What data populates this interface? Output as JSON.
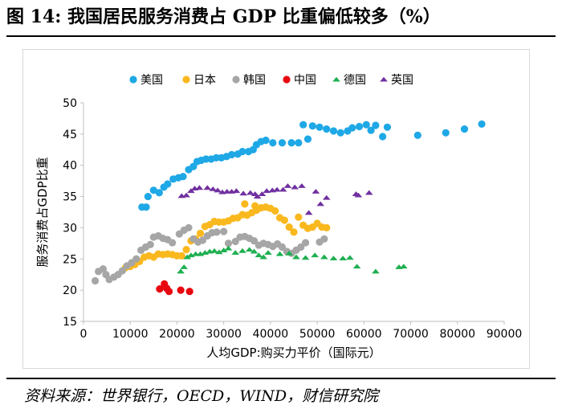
{
  "figure": {
    "title": "图 14: 我国居民服务消费占 GDP 比重偏低较多（%）",
    "source": "资料来源：世界银行，OECD，WIND，财信研究院"
  },
  "chart_data": {
    "type": "scatter",
    "title": "图 14: 我国居民服务消费占 GDP 比重偏低较多（%）",
    "xlabel": "人均GDP:购买力平价（国际元）",
    "ylabel": "服务消费占GDP比重",
    "xlim": [
      0,
      90000
    ],
    "ylim": [
      15,
      50
    ],
    "xticks": [
      0,
      10000,
      20000,
      30000,
      40000,
      50000,
      60000,
      70000,
      80000,
      90000
    ],
    "yticks": [
      15,
      20,
      25,
      30,
      35,
      40,
      45,
      50
    ],
    "legend_position": "top",
    "grid": false,
    "series": [
      {
        "name": "美国",
        "color": "#1fa8e6",
        "marker": "circle",
        "points": [
          [
            12500,
            33.3
          ],
          [
            13400,
            33.3
          ],
          [
            13800,
            35.0
          ],
          [
            15000,
            36.0
          ],
          [
            16200,
            35.6
          ],
          [
            17200,
            36.5
          ],
          [
            18000,
            37.0
          ],
          [
            19200,
            37.8
          ],
          [
            20300,
            38.0
          ],
          [
            21300,
            38.2
          ],
          [
            22500,
            39.3
          ],
          [
            23500,
            39.8
          ],
          [
            24300,
            40.6
          ],
          [
            25200,
            40.8
          ],
          [
            26200,
            41.0
          ],
          [
            27300,
            41.0
          ],
          [
            28400,
            41.2
          ],
          [
            29500,
            41.2
          ],
          [
            30600,
            41.4
          ],
          [
            31700,
            41.7
          ],
          [
            33000,
            41.8
          ],
          [
            34000,
            42.2
          ],
          [
            35300,
            42.2
          ],
          [
            36300,
            42.5
          ],
          [
            37000,
            43.3
          ],
          [
            38000,
            43.8
          ],
          [
            39000,
            44.0
          ],
          [
            40500,
            43.6
          ],
          [
            42500,
            43.6
          ],
          [
            44500,
            43.6
          ],
          [
            46000,
            43.6
          ],
          [
            47000,
            46.5
          ],
          [
            48000,
            44.2
          ],
          [
            49000,
            46.3
          ],
          [
            50500,
            46.1
          ],
          [
            52000,
            45.8
          ],
          [
            53500,
            45.5
          ],
          [
            55000,
            45.2
          ],
          [
            56500,
            45.5
          ],
          [
            57500,
            46.0
          ],
          [
            59000,
            46.2
          ],
          [
            60500,
            46.5
          ],
          [
            61500,
            45.6
          ],
          [
            62500,
            46.4
          ],
          [
            64000,
            44.6
          ],
          [
            65000,
            46.1
          ],
          [
            71500,
            44.8
          ],
          [
            77500,
            45.2
          ],
          [
            81500,
            45.8
          ],
          [
            85200,
            46.6
          ]
        ]
      },
      {
        "name": "日本",
        "color": "#f9b81e",
        "marker": "circle",
        "points": [
          [
            9000,
            23.6
          ],
          [
            10000,
            23.8
          ],
          [
            11000,
            24.1
          ],
          [
            12000,
            24.6
          ],
          [
            13000,
            25.3
          ],
          [
            14000,
            25.5
          ],
          [
            15000,
            25.3
          ],
          [
            16000,
            25.8
          ],
          [
            17000,
            25.7
          ],
          [
            18000,
            25.8
          ],
          [
            19000,
            25.7
          ],
          [
            20000,
            25.5
          ],
          [
            21000,
            25.5
          ],
          [
            22000,
            26.5
          ],
          [
            23000,
            27.9
          ],
          [
            24000,
            28.2
          ],
          [
            25000,
            29.1
          ],
          [
            26000,
            30.2
          ],
          [
            27000,
            30.5
          ],
          [
            28000,
            31.0
          ],
          [
            29000,
            30.9
          ],
          [
            30000,
            30.9
          ],
          [
            31000,
            31.1
          ],
          [
            32000,
            31.5
          ],
          [
            33000,
            31.6
          ],
          [
            34000,
            32.1
          ],
          [
            35000,
            32.0
          ],
          [
            36000,
            32.4
          ],
          [
            37000,
            32.8
          ],
          [
            38000,
            33.2
          ],
          [
            39000,
            33.3
          ],
          [
            40000,
            33.1
          ],
          [
            41000,
            32.7
          ],
          [
            42000,
            31.6
          ],
          [
            43000,
            31.2
          ],
          [
            44000,
            30.1
          ],
          [
            45000,
            29.3
          ],
          [
            46000,
            31.7
          ],
          [
            47000,
            30.4
          ],
          [
            48000,
            29.9
          ],
          [
            49000,
            30.1
          ],
          [
            50000,
            30.7
          ],
          [
            51000,
            30.1
          ],
          [
            52000,
            30.0
          ],
          [
            34500,
            33.8
          ],
          [
            36700,
            33.5
          ]
        ]
      },
      {
        "name": "韩国",
        "color": "#a6a6a6",
        "marker": "circle",
        "points": [
          [
            2500,
            21.5
          ],
          [
            3200,
            23.0
          ],
          [
            4200,
            23.4
          ],
          [
            4800,
            22.5
          ],
          [
            5500,
            21.7
          ],
          [
            6500,
            22.1
          ],
          [
            7400,
            22.5
          ],
          [
            8300,
            23.1
          ],
          [
            9300,
            23.9
          ],
          [
            10300,
            24.4
          ],
          [
            11300,
            25.0
          ],
          [
            12300,
            26.4
          ],
          [
            13300,
            26.9
          ],
          [
            14300,
            27.3
          ],
          [
            15000,
            28.5
          ],
          [
            16000,
            28.7
          ],
          [
            17000,
            28.3
          ],
          [
            18000,
            28.1
          ],
          [
            19000,
            27.6
          ],
          [
            20500,
            29.0
          ],
          [
            21500,
            29.6
          ],
          [
            22500,
            30.0
          ],
          [
            23500,
            28.2
          ],
          [
            24500,
            27.7
          ],
          [
            25500,
            28.0
          ],
          [
            26500,
            28.7
          ],
          [
            27500,
            29.2
          ],
          [
            28500,
            29.3
          ],
          [
            30000,
            29.4
          ],
          [
            31000,
            27.5
          ],
          [
            32500,
            27.8
          ],
          [
            33500,
            28.5
          ],
          [
            34500,
            28.6
          ],
          [
            35500,
            28.3
          ],
          [
            36500,
            27.9
          ],
          [
            37500,
            27.2
          ],
          [
            38500,
            27.5
          ],
          [
            39500,
            27.3
          ],
          [
            40500,
            27.0
          ],
          [
            41500,
            27.4
          ],
          [
            42500,
            26.9
          ],
          [
            43500,
            26.2
          ],
          [
            44500,
            25.9
          ],
          [
            45500,
            26.4
          ],
          [
            46500,
            26.9
          ],
          [
            47500,
            27.6
          ],
          [
            50500,
            27.7
          ],
          [
            51500,
            28.2
          ]
        ]
      },
      {
        "name": "中国",
        "color": "#e8060f",
        "marker": "circle",
        "points": [
          [
            16300,
            20.2
          ],
          [
            17300,
            21.0
          ],
          [
            17800,
            20.3
          ],
          [
            18300,
            19.8
          ],
          [
            20800,
            20.0
          ],
          [
            22700,
            19.8
          ]
        ]
      },
      {
        "name": "德国",
        "color": "#1eaf50",
        "marker": "triangle",
        "points": [
          [
            20800,
            23.0
          ],
          [
            21500,
            23.7
          ],
          [
            22200,
            25.3
          ],
          [
            23000,
            25.6
          ],
          [
            24000,
            25.8
          ],
          [
            25000,
            25.8
          ],
          [
            26000,
            26.0
          ],
          [
            27000,
            26.2
          ],
          [
            28000,
            26.3
          ],
          [
            29000,
            26.1
          ],
          [
            30000,
            26.4
          ],
          [
            31000,
            26.7
          ],
          [
            32500,
            26.0
          ],
          [
            34000,
            26.3
          ],
          [
            35500,
            26.5
          ],
          [
            36500,
            26.2
          ],
          [
            37500,
            25.6
          ],
          [
            38500,
            25.3
          ],
          [
            39500,
            26.0
          ],
          [
            42000,
            25.8
          ],
          [
            44000,
            25.9
          ],
          [
            45500,
            25.3
          ],
          [
            47500,
            25.2
          ],
          [
            49500,
            25.6
          ],
          [
            51500,
            25.3
          ],
          [
            53500,
            25.1
          ],
          [
            55500,
            25.1
          ],
          [
            57000,
            25.2
          ],
          [
            58500,
            23.8
          ],
          [
            62500,
            23.0
          ],
          [
            67500,
            23.7
          ],
          [
            68500,
            23.8
          ]
        ]
      },
      {
        "name": "英国",
        "color": "#7030a0",
        "marker": "triangle",
        "points": [
          [
            21000,
            35.1
          ],
          [
            22000,
            35.2
          ],
          [
            23000,
            35.9
          ],
          [
            23800,
            36.3
          ],
          [
            24800,
            36.4
          ],
          [
            26500,
            36.4
          ],
          [
            27700,
            36.2
          ],
          [
            28700,
            36.0
          ],
          [
            29700,
            35.7
          ],
          [
            30700,
            35.8
          ],
          [
            31700,
            35.8
          ],
          [
            32700,
            35.9
          ],
          [
            34200,
            35.5
          ],
          [
            35700,
            35.6
          ],
          [
            36700,
            35.4
          ],
          [
            37200,
            35.0
          ],
          [
            38200,
            35.4
          ],
          [
            39200,
            35.9
          ],
          [
            40400,
            36.0
          ],
          [
            41400,
            36.1
          ],
          [
            42700,
            36.1
          ],
          [
            43700,
            36.7
          ],
          [
            45200,
            36.5
          ],
          [
            46700,
            36.7
          ],
          [
            48200,
            32.4
          ],
          [
            49700,
            35.8
          ],
          [
            50700,
            33.8
          ],
          [
            52000,
            34.8
          ],
          [
            58300,
            35.4
          ],
          [
            58800,
            35.2
          ],
          [
            61100,
            35.6
          ]
        ]
      }
    ]
  }
}
